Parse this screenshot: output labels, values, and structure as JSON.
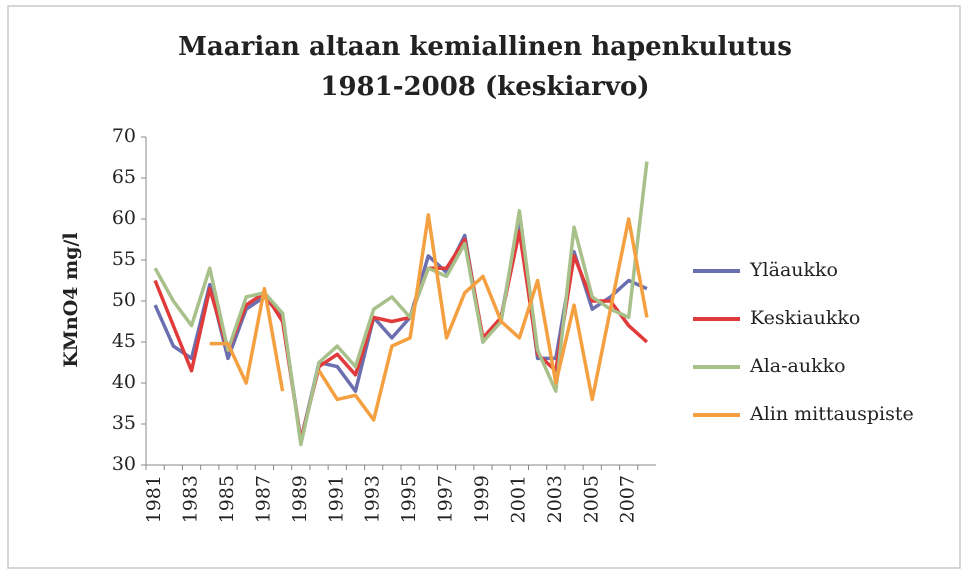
{
  "chart_data": {
    "type": "line",
    "title": [
      "Maarian altaan kemiallinen hapenkulutus",
      "1981-2008 (keskiarvo)"
    ],
    "y_label": "KMnO4 mg/l",
    "categories": [
      "1981",
      null,
      "1983",
      null,
      "1985",
      null,
      "1987",
      null,
      "1989",
      null,
      "1991",
      null,
      "1993",
      null,
      "1995",
      null,
      "1997",
      null,
      "1999",
      null,
      "2001",
      null,
      "2003",
      null,
      "2005",
      null,
      "2007",
      null
    ],
    "series": [
      {
        "name": "Yläaukko",
        "color": "#6b6fb0",
        "values": [
          49.5,
          44.5,
          43,
          52,
          43,
          49,
          50.5,
          48,
          33,
          42.5,
          42,
          39,
          48,
          45.5,
          48,
          55.5,
          53.5,
          58,
          45,
          48,
          60,
          43,
          43,
          56,
          49,
          50.5,
          52.5,
          51.5
        ]
      },
      {
        "name": "Keskiaukko",
        "color": "#e03a3a",
        "values": [
          52.5,
          47,
          41.5,
          51.5,
          44,
          49.5,
          51,
          47.5,
          33,
          42,
          43.5,
          41,
          48,
          47.5,
          48,
          54,
          54,
          57.5,
          45.5,
          48,
          58.5,
          43.5,
          41.5,
          55.5,
          50,
          50,
          47,
          45
        ]
      },
      {
        "name": "Ala-aukko",
        "color": "#a8c08a",
        "values": [
          54,
          50,
          47,
          54,
          44,
          50.5,
          51,
          48.5,
          32.5,
          42.5,
          44.5,
          42,
          49,
          50.5,
          48,
          54,
          53,
          57,
          45,
          47.5,
          61,
          44,
          39,
          59,
          50.5,
          49,
          48,
          67
        ]
      },
      {
        "name": "Alin mittauspiste",
        "color": "#f5a040",
        "values": [
          null,
          null,
          null,
          44.8,
          44.8,
          40,
          51.5,
          39,
          null,
          41.5,
          38,
          38.5,
          35.5,
          44.5,
          45.5,
          60.5,
          45.5,
          51,
          53,
          47.5,
          45.5,
          52.5,
          40,
          49.5,
          38,
          49,
          60,
          48
        ]
      }
    ],
    "ylim": [
      30,
      70
    ],
    "yticks": [
      30,
      35,
      40,
      45,
      50,
      55,
      60,
      65,
      70
    ],
    "grid": false
  }
}
